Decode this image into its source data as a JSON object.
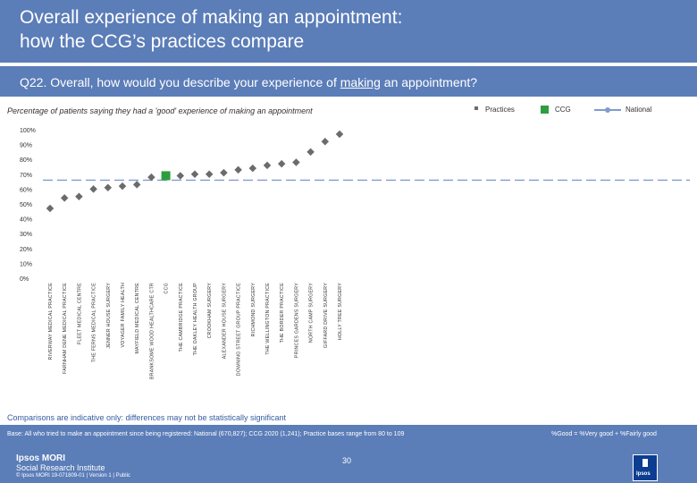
{
  "header": {
    "title": "Overall experience of making an appointment:\nhow the CCG’s practices compare"
  },
  "question": {
    "text_before": "Q22. Overall, how would you describe your experience of ",
    "underlined": "making",
    "text_after": " an appointment?"
  },
  "subtitle": "Percentage of patients saying they had a 'good' experience of making an appointment",
  "legend": {
    "practices": "Practices",
    "ccg": "CCG",
    "national": "National"
  },
  "colors": {
    "header_bg": "#5b7db8",
    "practice": "#6b6b6b",
    "ccg": "#2e9e3e",
    "national": "#7f9ccf",
    "axis_text": "#333333"
  },
  "chart_data": {
    "type": "scatter",
    "title": "",
    "categories": [
      "RIVERWAY MEDICAL PRACTICE",
      "FARNHAM DENE MEDICAL PRACTICE",
      "FLEET MEDICAL CENTRE",
      "THE FERNS MEDICAL PRACTICE",
      "JENNER HOUSE SURGERY",
      "VOYAGER FAMILY HEALTH",
      "MAYFIELD MEDICAL CENTRE",
      "BRANKSOME WOOD HEALTHCARE CTR",
      "CCG",
      "THE CAMBRIDGE PRACTICE",
      "THE OAKLEY HEALTH GROUP",
      "CROOKHAM SURGERY",
      "ALEXANDER HOUSE SURGERY",
      "DOWNING STREET GROUP PRACTICE",
      "RICHMOND SURGERY",
      "THE WELLINGTON PRACTICE",
      "THE BORDER PRACTICE",
      "PRINCES GARDENS SURGERY",
      "NORTH CAMP SURGERY",
      "GIFFARD DRIVE SURGERY",
      "HOLLY TREE SURGERY"
    ],
    "values": [
      47,
      54,
      55,
      60,
      61,
      62,
      63,
      68,
      69,
      69,
      70,
      70,
      71,
      73,
      74,
      76,
      77,
      78,
      85,
      92,
      97
    ],
    "ccg_index": 8,
    "national_value": 66,
    "ylim": [
      0,
      100
    ],
    "yticks": [
      "0%",
      "10%",
      "20%",
      "30%",
      "40%",
      "50%",
      "60%",
      "70%",
      "80%",
      "90%",
      "100%"
    ]
  },
  "footnote": "Comparisons are indicative only: differences may not be statistically significant",
  "footer": {
    "base": "Base: All who tried to make an appointment since being registered: National (670,827); CCG 2020 (1,241); Practice bases range from 80 to 109",
    "good_definition": "%Good = %Very good + %Fairly good",
    "brand_line1": "Ipsos MORI",
    "brand_line2": "Social Research Institute",
    "copyright": "© Ipsos MORI     19-071809-01 | Version 1 | Public",
    "page_number": "30",
    "logo_text": "Ipsos"
  }
}
